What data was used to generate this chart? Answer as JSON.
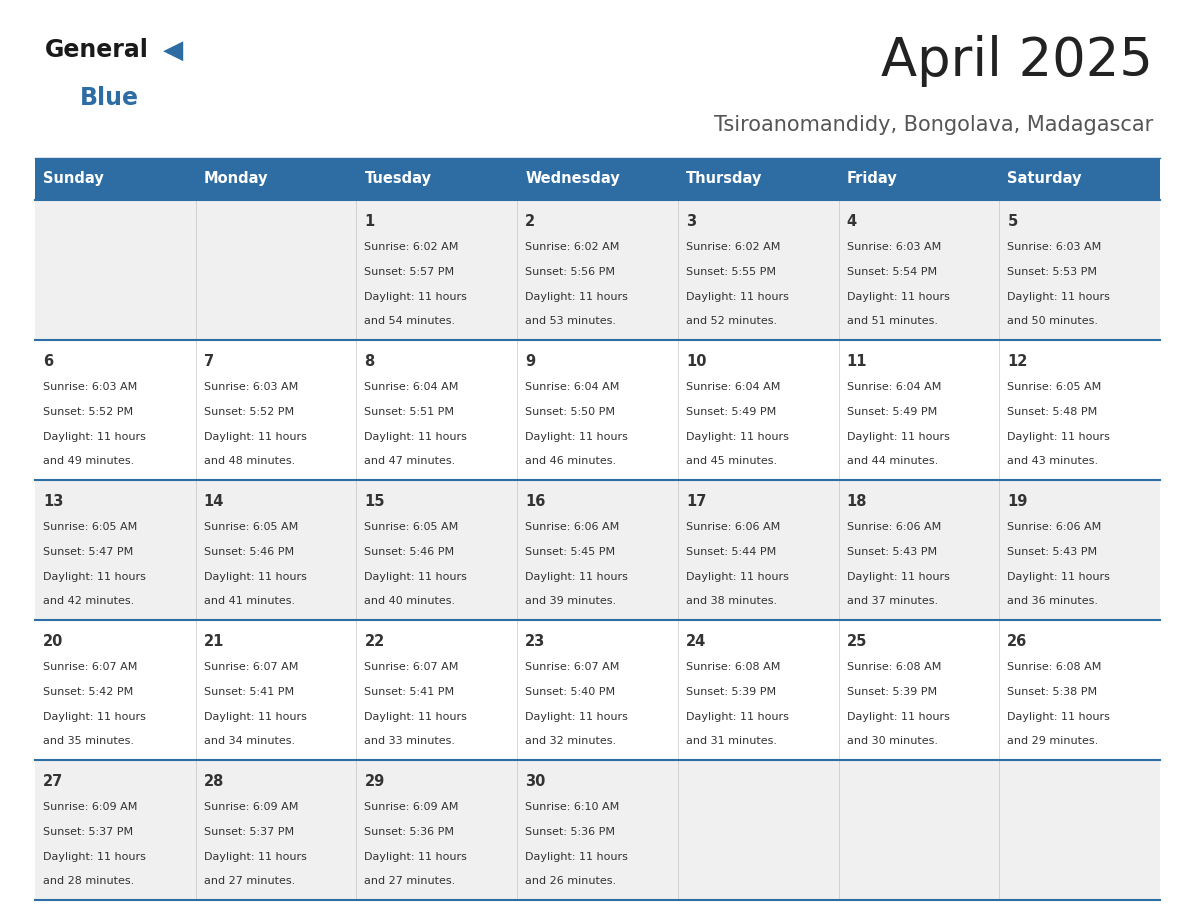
{
  "title": "April 2025",
  "subtitle": "Tsiroanomandidy, Bongolava, Madagascar",
  "days_of_week": [
    "Sunday",
    "Monday",
    "Tuesday",
    "Wednesday",
    "Thursday",
    "Friday",
    "Saturday"
  ],
  "header_bg": "#2E6DA4",
  "header_text": "#FFFFFF",
  "row_bg_odd": "#F0F0F0",
  "row_bg_even": "#FFFFFF",
  "cell_text_color": "#333333",
  "border_color": "#2E6DA4",
  "title_color": "#222222",
  "subtitle_color": "#555555",
  "logo_general_color": "#1a1a1a",
  "logo_blue_color": "#2E6DA4",
  "calendar_data": [
    [
      {
        "day": "",
        "sunrise": "",
        "sunset": "",
        "daylight": ""
      },
      {
        "day": "",
        "sunrise": "",
        "sunset": "",
        "daylight": ""
      },
      {
        "day": "1",
        "sunrise": "Sunrise: 6:02 AM",
        "sunset": "Sunset: 5:57 PM",
        "daylight": "Daylight: 11 hours and 54 minutes."
      },
      {
        "day": "2",
        "sunrise": "Sunrise: 6:02 AM",
        "sunset": "Sunset: 5:56 PM",
        "daylight": "Daylight: 11 hours and 53 minutes."
      },
      {
        "day": "3",
        "sunrise": "Sunrise: 6:02 AM",
        "sunset": "Sunset: 5:55 PM",
        "daylight": "Daylight: 11 hours and 52 minutes."
      },
      {
        "day": "4",
        "sunrise": "Sunrise: 6:03 AM",
        "sunset": "Sunset: 5:54 PM",
        "daylight": "Daylight: 11 hours and 51 minutes."
      },
      {
        "day": "5",
        "sunrise": "Sunrise: 6:03 AM",
        "sunset": "Sunset: 5:53 PM",
        "daylight": "Daylight: 11 hours and 50 minutes."
      }
    ],
    [
      {
        "day": "6",
        "sunrise": "Sunrise: 6:03 AM",
        "sunset": "Sunset: 5:52 PM",
        "daylight": "Daylight: 11 hours and 49 minutes."
      },
      {
        "day": "7",
        "sunrise": "Sunrise: 6:03 AM",
        "sunset": "Sunset: 5:52 PM",
        "daylight": "Daylight: 11 hours and 48 minutes."
      },
      {
        "day": "8",
        "sunrise": "Sunrise: 6:04 AM",
        "sunset": "Sunset: 5:51 PM",
        "daylight": "Daylight: 11 hours and 47 minutes."
      },
      {
        "day": "9",
        "sunrise": "Sunrise: 6:04 AM",
        "sunset": "Sunset: 5:50 PM",
        "daylight": "Daylight: 11 hours and 46 minutes."
      },
      {
        "day": "10",
        "sunrise": "Sunrise: 6:04 AM",
        "sunset": "Sunset: 5:49 PM",
        "daylight": "Daylight: 11 hours and 45 minutes."
      },
      {
        "day": "11",
        "sunrise": "Sunrise: 6:04 AM",
        "sunset": "Sunset: 5:49 PM",
        "daylight": "Daylight: 11 hours and 44 minutes."
      },
      {
        "day": "12",
        "sunrise": "Sunrise: 6:05 AM",
        "sunset": "Sunset: 5:48 PM",
        "daylight": "Daylight: 11 hours and 43 minutes."
      }
    ],
    [
      {
        "day": "13",
        "sunrise": "Sunrise: 6:05 AM",
        "sunset": "Sunset: 5:47 PM",
        "daylight": "Daylight: 11 hours and 42 minutes."
      },
      {
        "day": "14",
        "sunrise": "Sunrise: 6:05 AM",
        "sunset": "Sunset: 5:46 PM",
        "daylight": "Daylight: 11 hours and 41 minutes."
      },
      {
        "day": "15",
        "sunrise": "Sunrise: 6:05 AM",
        "sunset": "Sunset: 5:46 PM",
        "daylight": "Daylight: 11 hours and 40 minutes."
      },
      {
        "day": "16",
        "sunrise": "Sunrise: 6:06 AM",
        "sunset": "Sunset: 5:45 PM",
        "daylight": "Daylight: 11 hours and 39 minutes."
      },
      {
        "day": "17",
        "sunrise": "Sunrise: 6:06 AM",
        "sunset": "Sunset: 5:44 PM",
        "daylight": "Daylight: 11 hours and 38 minutes."
      },
      {
        "day": "18",
        "sunrise": "Sunrise: 6:06 AM",
        "sunset": "Sunset: 5:43 PM",
        "daylight": "Daylight: 11 hours and 37 minutes."
      },
      {
        "day": "19",
        "sunrise": "Sunrise: 6:06 AM",
        "sunset": "Sunset: 5:43 PM",
        "daylight": "Daylight: 11 hours and 36 minutes."
      }
    ],
    [
      {
        "day": "20",
        "sunrise": "Sunrise: 6:07 AM",
        "sunset": "Sunset: 5:42 PM",
        "daylight": "Daylight: 11 hours and 35 minutes."
      },
      {
        "day": "21",
        "sunrise": "Sunrise: 6:07 AM",
        "sunset": "Sunset: 5:41 PM",
        "daylight": "Daylight: 11 hours and 34 minutes."
      },
      {
        "day": "22",
        "sunrise": "Sunrise: 6:07 AM",
        "sunset": "Sunset: 5:41 PM",
        "daylight": "Daylight: 11 hours and 33 minutes."
      },
      {
        "day": "23",
        "sunrise": "Sunrise: 6:07 AM",
        "sunset": "Sunset: 5:40 PM",
        "daylight": "Daylight: 11 hours and 32 minutes."
      },
      {
        "day": "24",
        "sunrise": "Sunrise: 6:08 AM",
        "sunset": "Sunset: 5:39 PM",
        "daylight": "Daylight: 11 hours and 31 minutes."
      },
      {
        "day": "25",
        "sunrise": "Sunrise: 6:08 AM",
        "sunset": "Sunset: 5:39 PM",
        "daylight": "Daylight: 11 hours and 30 minutes."
      },
      {
        "day": "26",
        "sunrise": "Sunrise: 6:08 AM",
        "sunset": "Sunset: 5:38 PM",
        "daylight": "Daylight: 11 hours and 29 minutes."
      }
    ],
    [
      {
        "day": "27",
        "sunrise": "Sunrise: 6:09 AM",
        "sunset": "Sunset: 5:37 PM",
        "daylight": "Daylight: 11 hours and 28 minutes."
      },
      {
        "day": "28",
        "sunrise": "Sunrise: 6:09 AM",
        "sunset": "Sunset: 5:37 PM",
        "daylight": "Daylight: 11 hours and 27 minutes."
      },
      {
        "day": "29",
        "sunrise": "Sunrise: 6:09 AM",
        "sunset": "Sunset: 5:36 PM",
        "daylight": "Daylight: 11 hours and 27 minutes."
      },
      {
        "day": "30",
        "sunrise": "Sunrise: 6:10 AM",
        "sunset": "Sunset: 5:36 PM",
        "daylight": "Daylight: 11 hours and 26 minutes."
      },
      {
        "day": "",
        "sunrise": "",
        "sunset": "",
        "daylight": ""
      },
      {
        "day": "",
        "sunrise": "",
        "sunset": "",
        "daylight": ""
      },
      {
        "day": "",
        "sunrise": "",
        "sunset": "",
        "daylight": ""
      }
    ]
  ]
}
